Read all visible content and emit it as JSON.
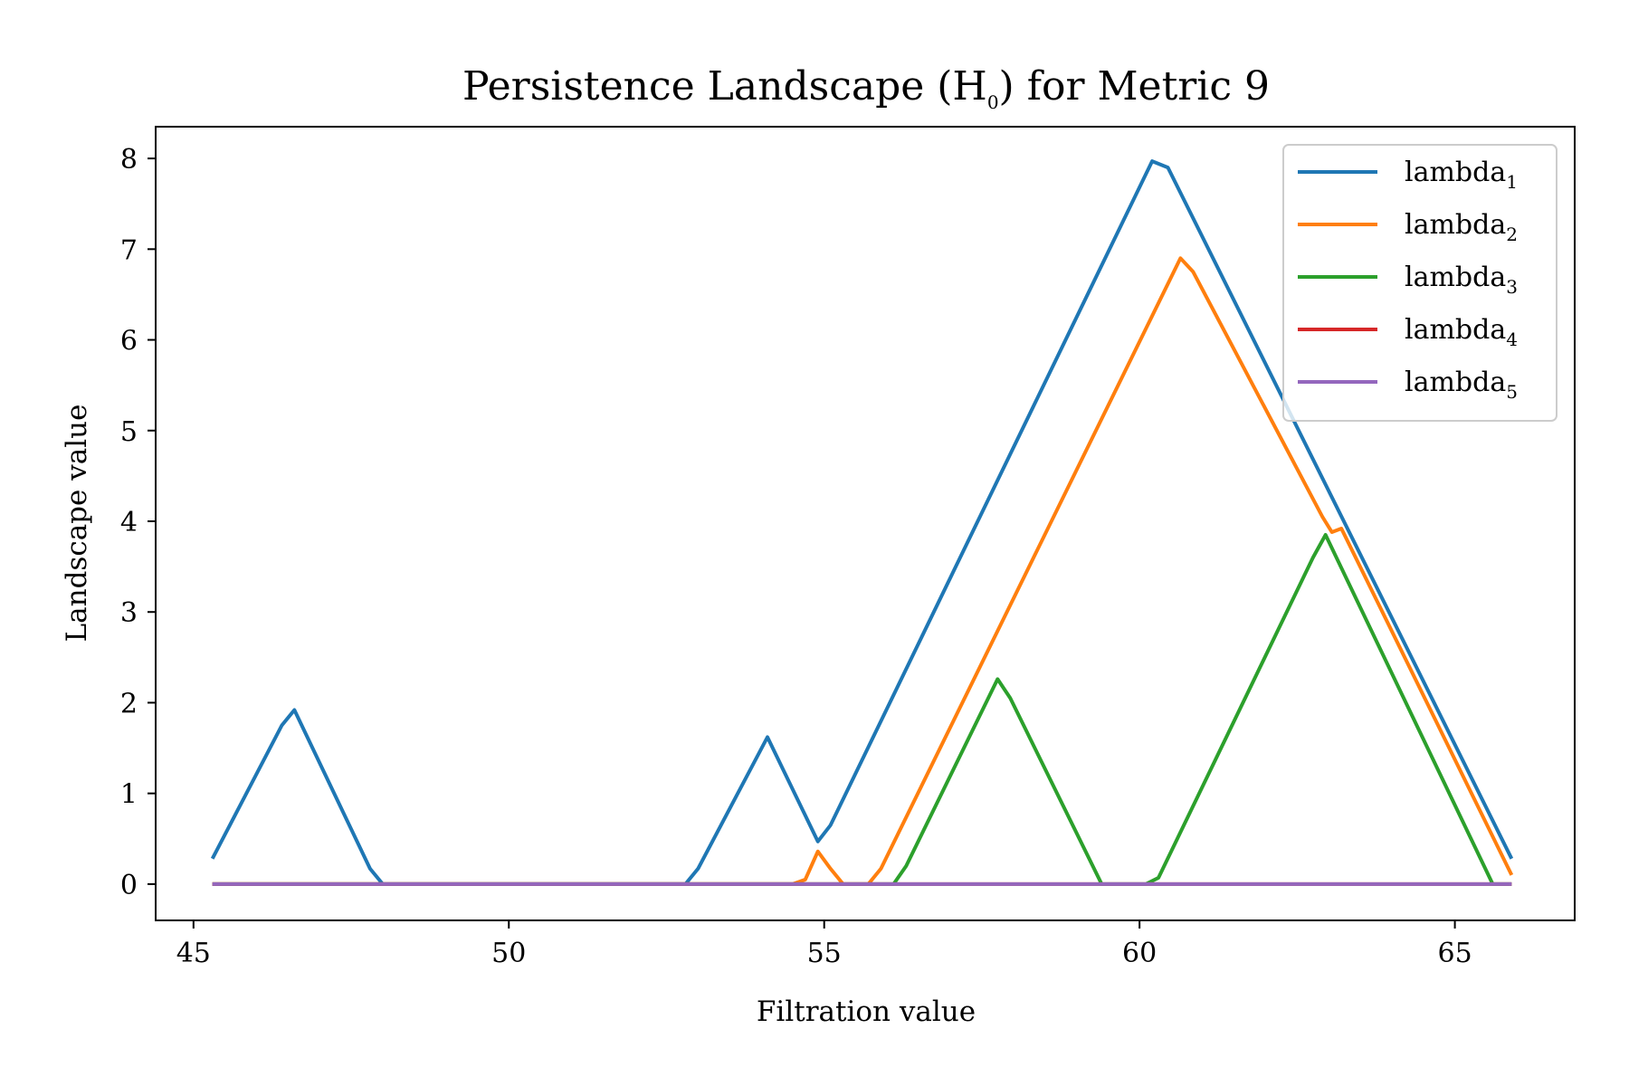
{
  "chart_data": {
    "type": "line",
    "title": "Persistence Landscape (H",
    "title_sub": "0",
    "title_suffix": ") for Metric 9",
    "xlabel": "Filtration value",
    "ylabel": "Landscape value",
    "xlim": [
      44.4,
      66.9
    ],
    "ylim": [
      -0.4,
      8.35
    ],
    "xticks": [
      45,
      50,
      55,
      60,
      65
    ],
    "yticks": [
      0,
      1,
      2,
      3,
      4,
      5,
      6,
      7,
      8
    ],
    "legend_position": "upper right",
    "series": [
      {
        "name": "lambda",
        "sub": "1",
        "color": "#1f77b4",
        "x": [
          45.3,
          46.4,
          46.6,
          47.8,
          48.0,
          52.8,
          53.0,
          54.1,
          54.9,
          55.1,
          60.2,
          60.45,
          65.9
        ],
        "y": [
          0.28,
          1.75,
          1.92,
          0.17,
          0.0,
          0.0,
          0.17,
          1.62,
          0.47,
          0.65,
          7.97,
          7.9,
          0.28
        ]
      },
      {
        "name": "lambda",
        "sub": "2",
        "color": "#ff7f0e",
        "x": [
          45.3,
          54.5,
          54.7,
          54.9,
          55.1,
          55.3,
          55.7,
          55.9,
          60.65,
          60.85,
          62.9,
          63.05,
          63.2,
          65.9
        ],
        "y": [
          0.0,
          0.0,
          0.05,
          0.36,
          0.17,
          0.0,
          0.0,
          0.17,
          6.9,
          6.75,
          4.05,
          3.88,
          3.92,
          0.1
        ]
      },
      {
        "name": "lambda",
        "sub": "3",
        "color": "#2ca02c",
        "x": [
          45.3,
          56.1,
          56.3,
          57.75,
          57.95,
          59.4,
          60.1,
          60.3,
          62.75,
          62.95,
          65.6,
          65.9
        ],
        "y": [
          0.0,
          0.0,
          0.2,
          2.26,
          2.05,
          0.0,
          0.0,
          0.07,
          3.6,
          3.85,
          0.0,
          0.0
        ]
      },
      {
        "name": "lambda",
        "sub": "4",
        "color": "#d62728",
        "x": [
          45.3,
          65.9
        ],
        "y": [
          0.0,
          0.0
        ]
      },
      {
        "name": "lambda",
        "sub": "5",
        "color": "#9467bd",
        "x": [
          45.3,
          65.9
        ],
        "y": [
          0.0,
          0.0
        ]
      }
    ]
  }
}
